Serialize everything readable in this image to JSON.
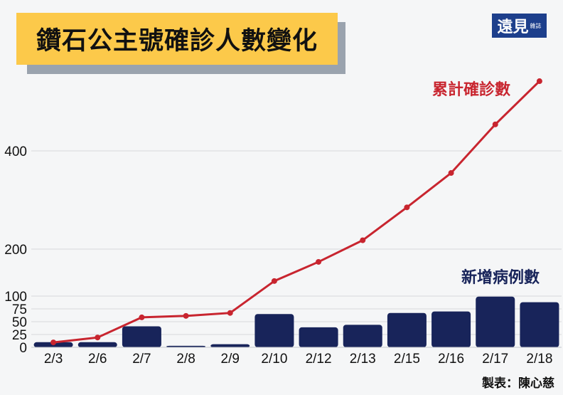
{
  "title": "鑽石公主號確診人數變化",
  "logo": {
    "main": "遠見",
    "sub": "雜誌",
    "bg_color": "#1d3f8c"
  },
  "footer": "製表：陳心慈",
  "colors": {
    "bar": "#18245a",
    "line": "#c8252f",
    "title_bg": "#fcc94a",
    "title_shadow": "#9aa3ae",
    "background": "#f5f6f7"
  },
  "chart_data": {
    "type": "bar+line",
    "title": "鑽石公主號確診人數變化",
    "categories": [
      "2/3",
      "2/6",
      "2/7",
      "2/8",
      "2/9",
      "2/10",
      "2/12",
      "2/13",
      "2/15",
      "2/16",
      "2/17",
      "2/18"
    ],
    "series": [
      {
        "name": "新增病例數",
        "type": "bar",
        "color": "#18245a",
        "values": [
          10,
          10,
          41,
          3,
          6,
          65,
          39,
          44,
          67,
          70,
          99,
          88
        ]
      },
      {
        "name": "累計確診數",
        "type": "line",
        "color": "#c8252f",
        "values": [
          10,
          20,
          61,
          64,
          70,
          135,
          174,
          218,
          285,
          355,
          454,
          542
        ]
      }
    ],
    "y_ticks": [
      0,
      25,
      50,
      75,
      100,
      200,
      400
    ],
    "ylim": [
      0,
      560
    ],
    "grid": true,
    "legend": "inline labels"
  }
}
